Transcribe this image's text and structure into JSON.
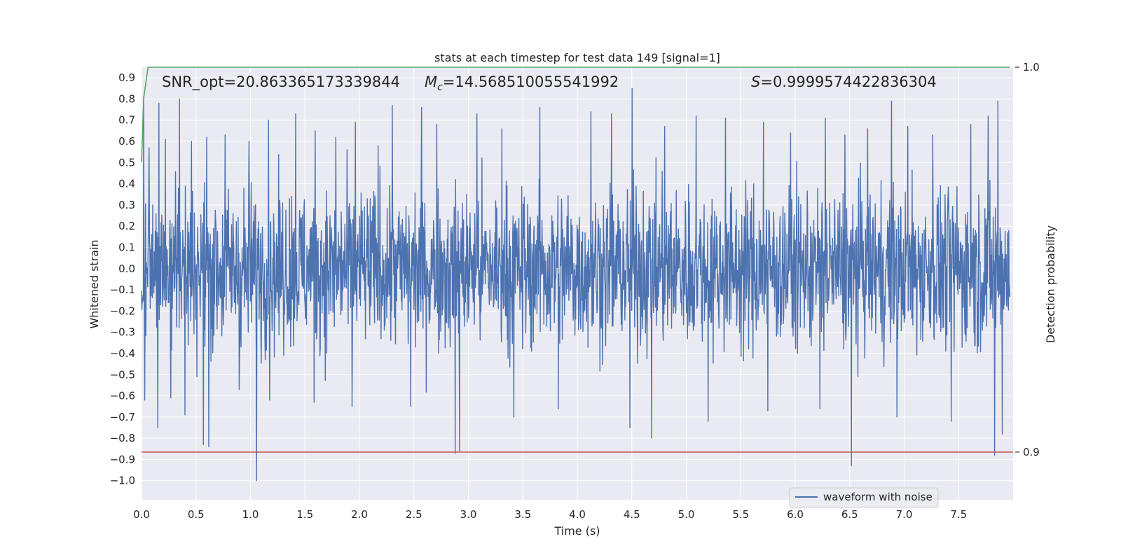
{
  "chart_data": {
    "type": "line",
    "title": "stats at each timestep for test data 149 [signal=1]",
    "xlabel": "Time (s)",
    "ylabel": "Whitened strain",
    "y2label": "Detection probability",
    "xlim": [
      0.0,
      8.0
    ],
    "ylim": [
      -1.09,
      0.95
    ],
    "y2lim": [
      0.8876,
      1.0
    ],
    "xticks": [
      "0.0",
      "0.5",
      "1.0",
      "1.5",
      "2.0",
      "2.5",
      "3.0",
      "3.5",
      "4.0",
      "4.5",
      "5.0",
      "5.5",
      "6.0",
      "6.5",
      "7.0",
      "7.5"
    ],
    "yticks": [
      "0.9",
      "0.8",
      "0.7",
      "0.6",
      "0.5",
      "0.4",
      "0.3",
      "0.2",
      "0.1",
      "0.0",
      "-0.1",
      "-0.2",
      "-0.3",
      "-0.4",
      "-0.5",
      "-0.6",
      "-0.7",
      "-0.8",
      "-0.9",
      "-1.0"
    ],
    "y2ticks": [
      "1.0",
      "0.9"
    ],
    "annotations": {
      "snr": "SNR_opt=20.863365173339844",
      "mc_symbol": "M",
      "mc_sub": "c",
      "mc_value": "=14.568510055541992",
      "s_symbol": "S",
      "s_value": "=0.9999574422836304"
    },
    "series": [
      {
        "name": "waveform with noise",
        "color": "#4c72b0",
        "axis": "left",
        "noise_envelope": {
          "typical_min": -0.47,
          "typical_max": 0.47
        },
        "spikes": [
          {
            "x": 0.02,
            "y": 0.81
          },
          {
            "x": 0.03,
            "y": -0.62
          },
          {
            "x": 0.07,
            "y": 0.57
          },
          {
            "x": 0.16,
            "y": 0.78
          },
          {
            "x": 0.15,
            "y": -0.75
          },
          {
            "x": 0.22,
            "y": 0.61
          },
          {
            "x": 0.27,
            "y": -0.61
          },
          {
            "x": 0.35,
            "y": 0.8
          },
          {
            "x": 0.4,
            "y": -0.69
          },
          {
            "x": 0.46,
            "y": 0.6
          },
          {
            "x": 0.6,
            "y": 0.62
          },
          {
            "x": 0.57,
            "y": -0.83
          },
          {
            "x": 0.62,
            "y": -0.84
          },
          {
            "x": 0.77,
            "y": 0.63
          },
          {
            "x": 0.9,
            "y": -0.57
          },
          {
            "x": 0.99,
            "y": 0.6
          },
          {
            "x": 1.06,
            "y": -1.0
          },
          {
            "x": 1.17,
            "y": 0.7
          },
          {
            "x": 1.18,
            "y": -0.62
          },
          {
            "x": 1.42,
            "y": 0.73
          },
          {
            "x": 1.6,
            "y": 0.65
          },
          {
            "x": 1.59,
            "y": -0.63
          },
          {
            "x": 1.79,
            "y": 0.62
          },
          {
            "x": 1.97,
            "y": 0.69
          },
          {
            "x": 1.94,
            "y": -0.65
          },
          {
            "x": 2.18,
            "y": 0.58
          },
          {
            "x": 2.31,
            "y": 0.77
          },
          {
            "x": 2.48,
            "y": -0.65
          },
          {
            "x": 2.58,
            "y": 0.76
          },
          {
            "x": 2.72,
            "y": 0.68
          },
          {
            "x": 2.89,
            "y": -0.87
          },
          {
            "x": 2.93,
            "y": -0.86
          },
          {
            "x": 3.09,
            "y": 0.73
          },
          {
            "x": 3.32,
            "y": 0.66
          },
          {
            "x": 3.43,
            "y": -0.7
          },
          {
            "x": 3.67,
            "y": 0.76
          },
          {
            "x": 3.84,
            "y": -0.66
          },
          {
            "x": 4.14,
            "y": 0.74
          },
          {
            "x": 4.33,
            "y": 0.73
          },
          {
            "x": 4.52,
            "y": 0.85
          },
          {
            "x": 4.5,
            "y": -0.75
          },
          {
            "x": 4.7,
            "y": -0.8
          },
          {
            "x": 4.82,
            "y": 0.67
          },
          {
            "x": 5.11,
            "y": 0.72
          },
          {
            "x": 5.22,
            "y": -0.72
          },
          {
            "x": 5.38,
            "y": 0.71
          },
          {
            "x": 5.73,
            "y": 0.69
          },
          {
            "x": 5.77,
            "y": -0.67
          },
          {
            "x": 5.98,
            "y": 0.64
          },
          {
            "x": 6.25,
            "y": -0.66
          },
          {
            "x": 6.3,
            "y": 0.71
          },
          {
            "x": 6.54,
            "y": -0.93
          },
          {
            "x": 6.48,
            "y": 0.63
          },
          {
            "x": 6.69,
            "y": 0.66
          },
          {
            "x": 6.91,
            "y": 0.79
          },
          {
            "x": 6.96,
            "y": -0.7
          },
          {
            "x": 7.06,
            "y": 0.67
          },
          {
            "x": 7.29,
            "y": 0.63
          },
          {
            "x": 7.46,
            "y": -0.72
          },
          {
            "x": 7.64,
            "y": 0.68
          },
          {
            "x": 7.8,
            "y": 0.72
          },
          {
            "x": 7.89,
            "y": 0.79
          },
          {
            "x": 7.86,
            "y": -0.88
          },
          {
            "x": 7.93,
            "y": -0.78
          }
        ]
      },
      {
        "name": "",
        "color": "#55a868",
        "axis": "right",
        "points": [
          [
            0.0,
            0.9754
          ],
          [
            0.02,
            0.992
          ],
          [
            0.06,
            1.0
          ],
          [
            7.97,
            1.0
          ]
        ]
      },
      {
        "name": "",
        "color": "#c44e52",
        "axis": "right",
        "points": [
          [
            0.0,
            0.9
          ],
          [
            8.0,
            0.9
          ]
        ]
      }
    ],
    "legend": {
      "position": "lower-right",
      "entries": [
        "waveform with noise"
      ]
    },
    "grid": true,
    "background": "#eaeaf2",
    "grid_color": "#ffffff"
  }
}
